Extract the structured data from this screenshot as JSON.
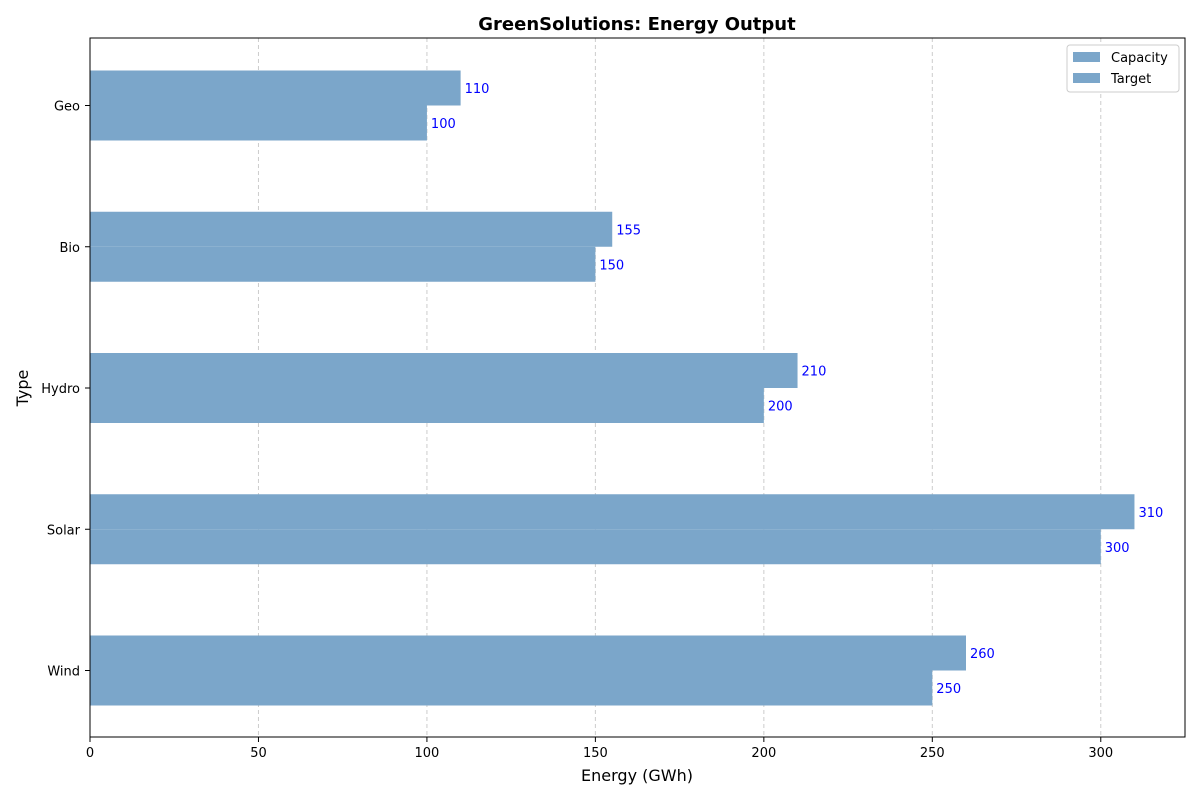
{
  "chart_data": {
    "type": "bar",
    "orientation": "horizontal",
    "title": "GreenSolutions: Energy Output",
    "xlabel": "Energy (GWh)",
    "ylabel": "Type",
    "categories": [
      "Wind",
      "Solar",
      "Hydro",
      "Bio",
      "Geo"
    ],
    "series": [
      {
        "name": "Capacity",
        "values": [
          260,
          310,
          210,
          155,
          110
        ],
        "color": "#7ba6ca"
      },
      {
        "name": "Target",
        "values": [
          250,
          300,
          200,
          150,
          100
        ],
        "color": "#7ba6ca"
      }
    ],
    "xlim": [
      0,
      325
    ],
    "xticks": [
      0,
      50,
      100,
      150,
      200,
      250,
      300
    ],
    "grid": "x-dashed",
    "legend_position": "top-right",
    "data_label_color": "#0000ff"
  }
}
